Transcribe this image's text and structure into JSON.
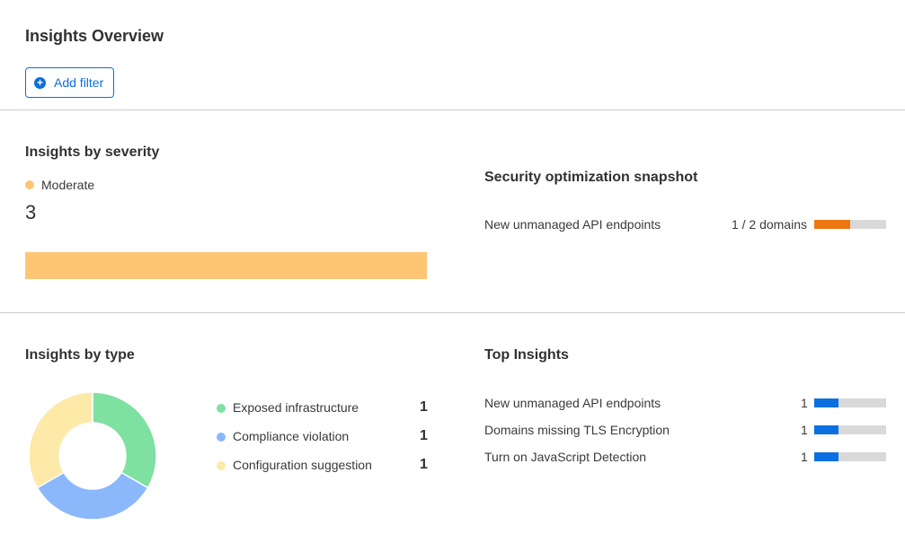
{
  "title": "Insights Overview",
  "add_filter": {
    "label": "Add filter",
    "icon": "plus-circle-icon"
  },
  "severity": {
    "title": "Insights by severity",
    "legend": "Moderate",
    "count": "3",
    "color": "#fdc574"
  },
  "snapshot": {
    "title": "Security optimization snapshot",
    "items": [
      {
        "label": "New unmanaged API endpoints",
        "value": "1 / 2 domains",
        "fraction": 0.5,
        "color": "#ee7711"
      }
    ]
  },
  "by_type": {
    "title": "Insights by type",
    "items": [
      {
        "label": "Exposed infrastructure",
        "value": "1",
        "color": "#7ee0a1"
      },
      {
        "label": "Compliance violation",
        "value": "1",
        "color": "#8ab8fa"
      },
      {
        "label": "Configuration suggestion",
        "value": "1",
        "color": "#fde9a8"
      }
    ]
  },
  "top": {
    "title": "Top Insights",
    "color": "#0b6fe0",
    "items": [
      {
        "label": "New unmanaged API endpoints",
        "value": "1",
        "fraction": 0.333
      },
      {
        "label": "Domains missing TLS Encryption",
        "value": "1",
        "fraction": 0.333
      },
      {
        "label": "Turn on JavaScript Detection",
        "value": "1",
        "fraction": 0.333
      }
    ]
  }
}
